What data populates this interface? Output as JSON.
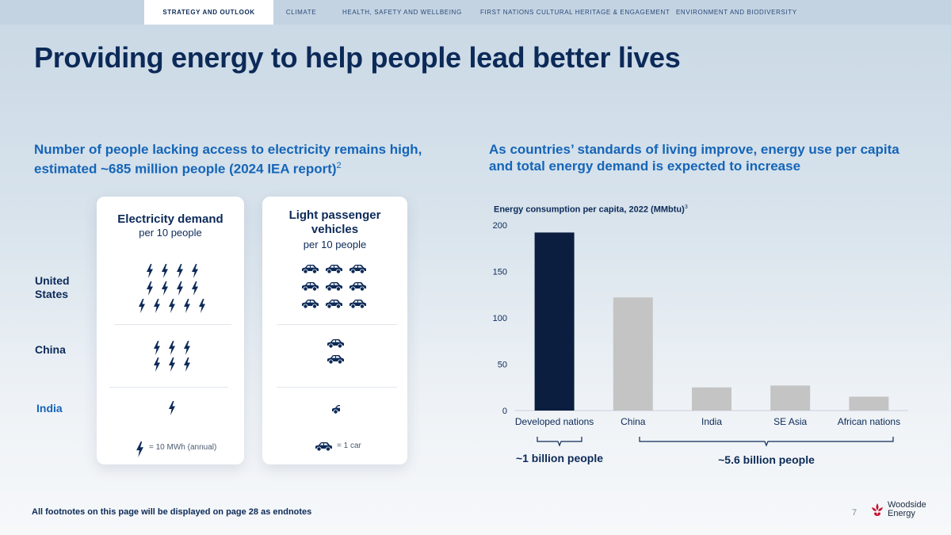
{
  "nav": {
    "tabs": [
      {
        "label": "STRATEGY AND OUTLOOK"
      },
      {
        "label": "CLIMATE"
      },
      {
        "label": "HEALTH, SAFETY AND WELLBEING"
      },
      {
        "label": "FIRST NATIONS CULTURAL HERITAGE & ENGAGEMENT"
      },
      {
        "label": "ENVIRONMENT AND BIODIVERSITY"
      }
    ]
  },
  "page": {
    "title": "Providing energy to help people lead better lives",
    "left_heading_line1": "Number of people lacking access to electricity remains high,",
    "left_heading_line2": "estimated ~685 million people (2024 IEA report)",
    "left_heading_sup": "2",
    "right_heading_line1": "As countries’ standards of living improve, energy use per capita",
    "right_heading_line2": "and total energy demand is expected to increase",
    "footnote": "All footnotes on this page will be displayed on page 28 as endnotes",
    "page_number": "7",
    "logo_line1": "Woodside",
    "logo_line2": "Energy"
  },
  "infographic": {
    "rows": [
      {
        "label_line1": "United",
        "label_line2": "States",
        "bolts": 13,
        "cars": 9
      },
      {
        "label_line1": "China",
        "label_line2": "",
        "bolts": 6,
        "cars": 2
      },
      {
        "label_line1": "India",
        "label_line2": "",
        "bolts": 1,
        "cars": 0.5
      }
    ],
    "electricity_card": {
      "title": "Electricity demand",
      "subtitle": "per 10 people",
      "legend": "= 10 MWh (annual)"
    },
    "vehicles_card": {
      "title_line1": "Light passenger",
      "title_line2": "vehicles",
      "subtitle": "per 10 people",
      "legend": "= 1 car"
    }
  },
  "chart_data": {
    "type": "bar",
    "title": "Energy consumption per capita, 2022 (MMbtu)",
    "title_sup": "3",
    "categories": [
      "Developed nations",
      "China",
      "India",
      "SE Asia",
      "African nations"
    ],
    "values": [
      192,
      122,
      25,
      27,
      15
    ],
    "ylim": [
      0,
      200
    ],
    "yticks": [
      "200",
      "150",
      "100",
      "50",
      "0"
    ],
    "colors": [
      "#0b1e40",
      "#c4c4c4",
      "#c4c4c4",
      "#c4c4c4",
      "#c4c4c4"
    ],
    "brackets": [
      {
        "label": "~1 billion people"
      },
      {
        "label": "~5.6 billion people"
      }
    ]
  },
  "colors": {
    "navy": "#0c2a58",
    "blue": "#1565b8",
    "bar_dark": "#0b1e40",
    "bar_grey": "#c4c4c4"
  }
}
